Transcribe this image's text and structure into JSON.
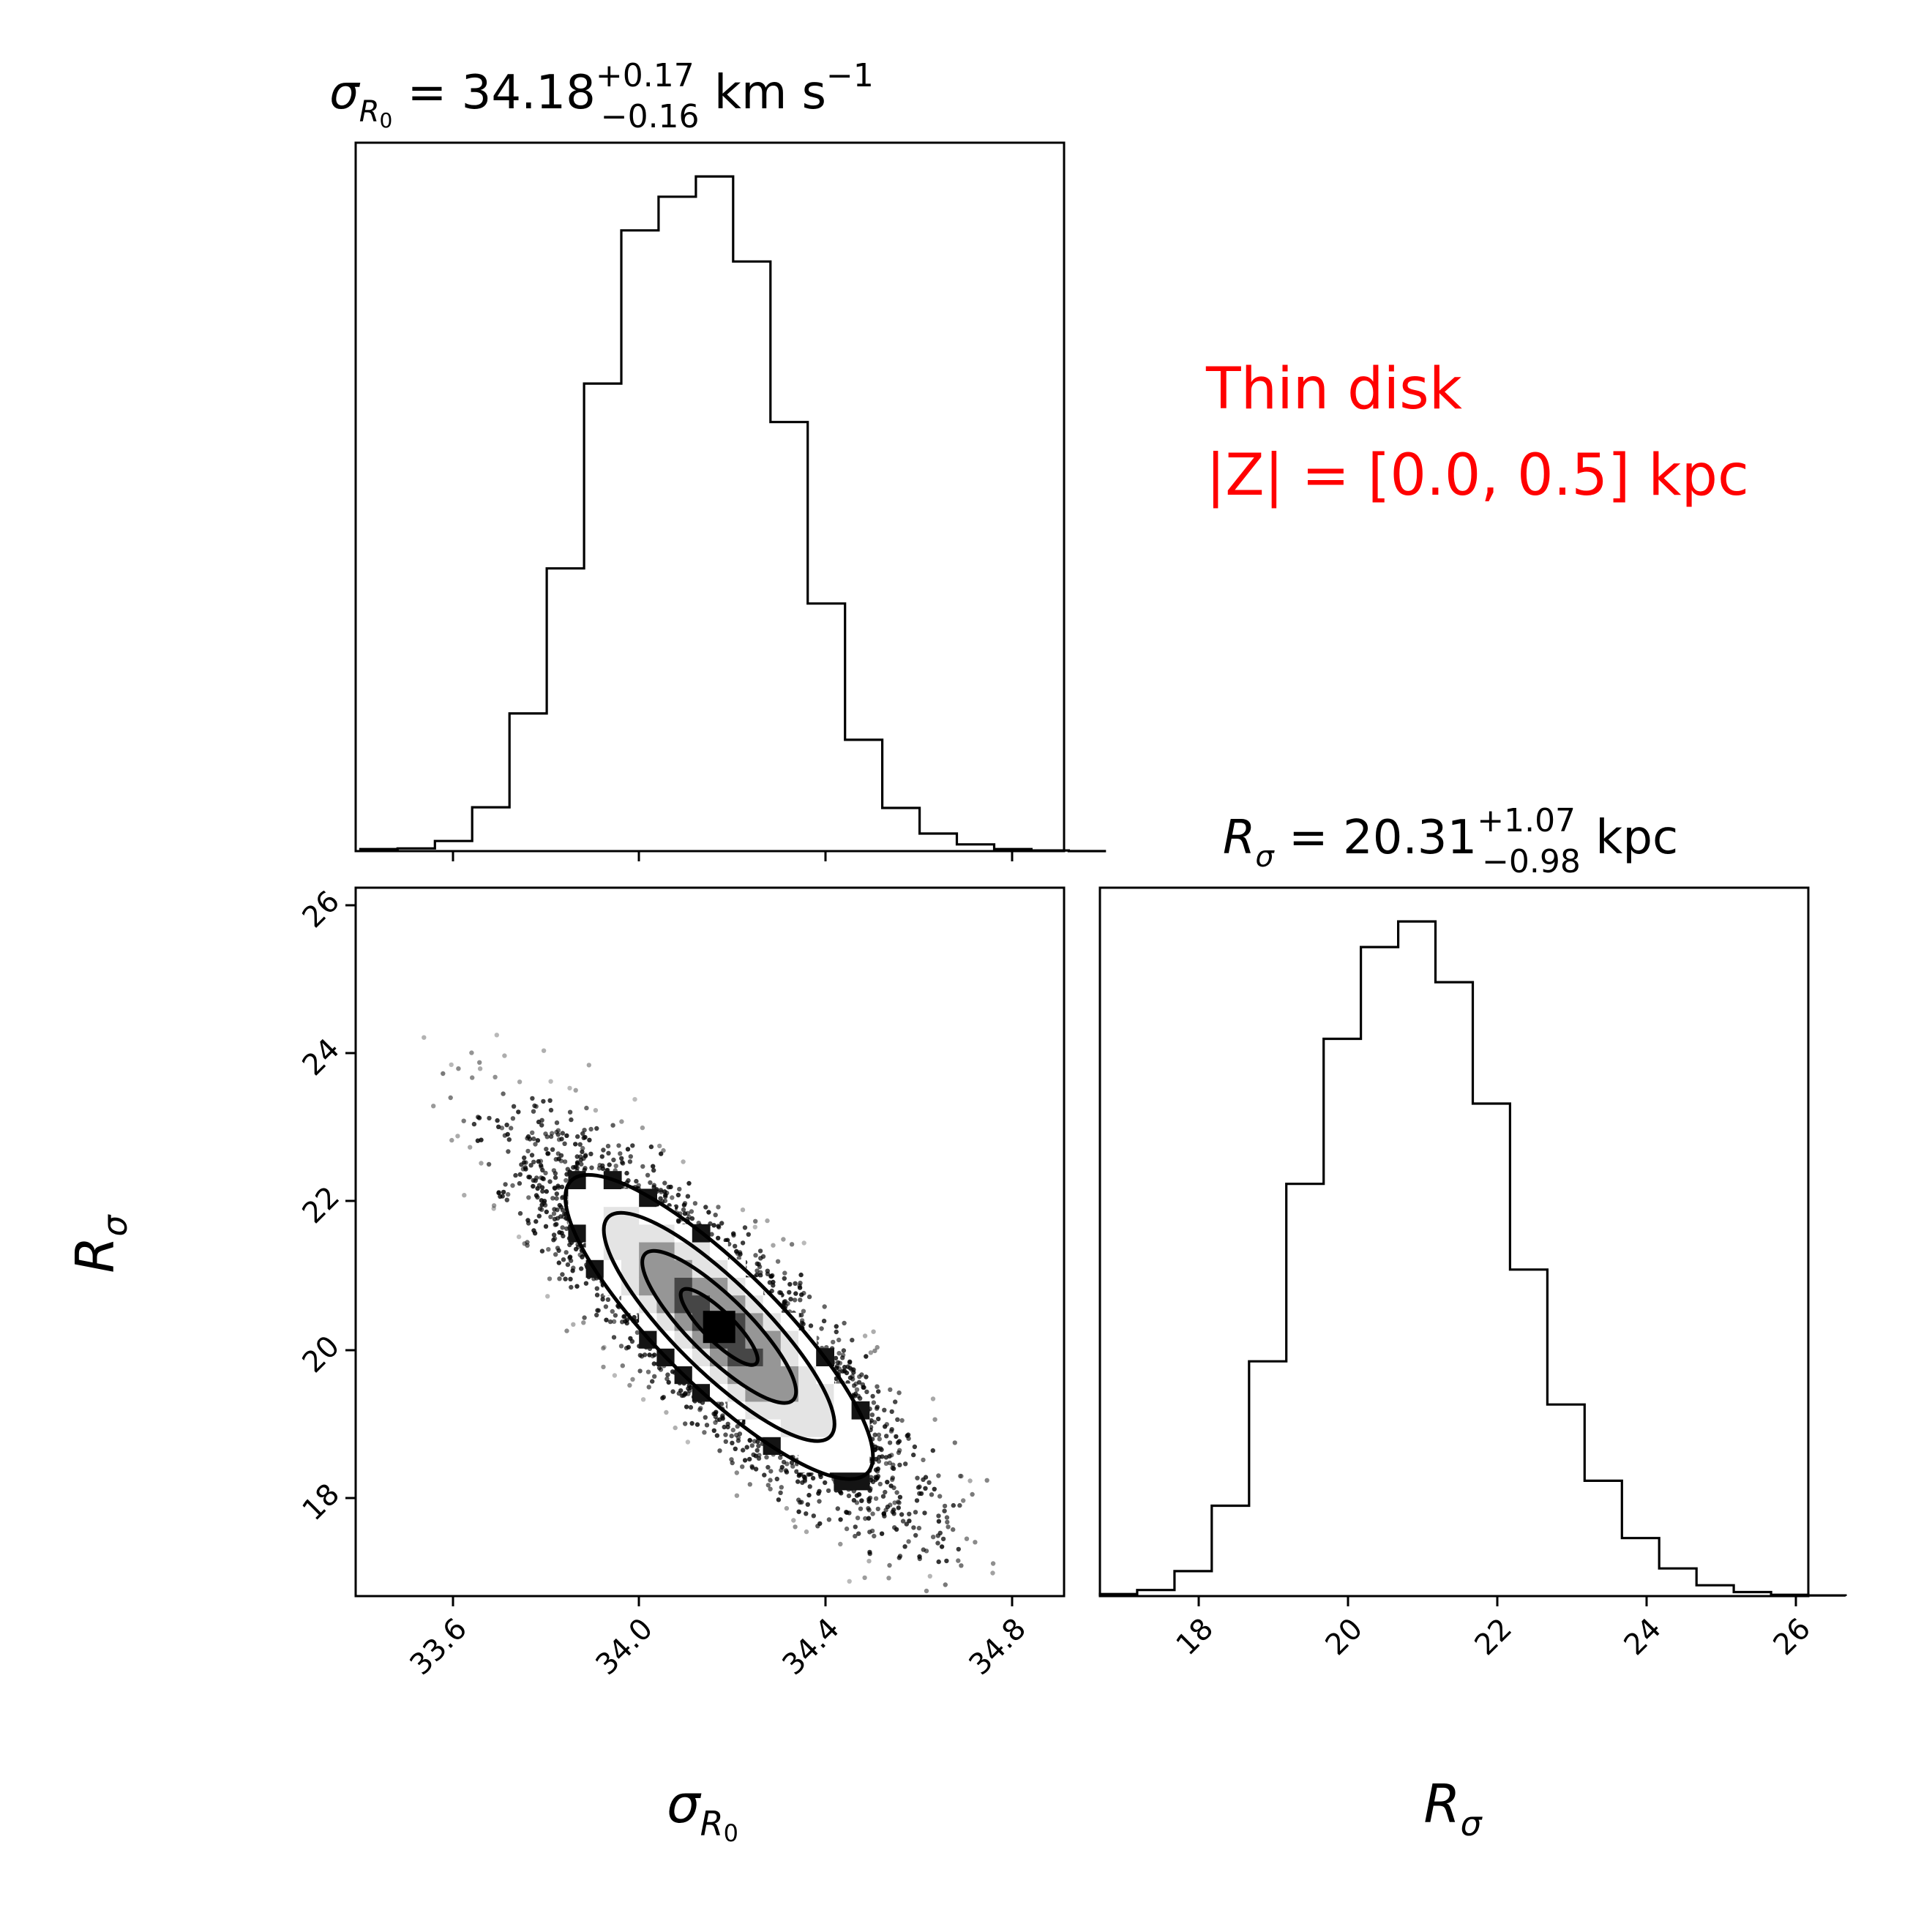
{
  "chart_data": [
    {
      "type": "histogram",
      "panel": "top-left",
      "title": {
        "symbol": "σ",
        "sub": "R",
        "subsub": "0",
        "eq": " = 34.18",
        "sup": "+0.17",
        "low": "−0.16",
        "unit": " km s",
        "unit_exp": "−1"
      },
      "xlim": [
        33.4,
        34.92
      ],
      "bins": {
        "start": 33.41,
        "width": 0.08
      },
      "counts": [
        0.003,
        0.004,
        0.015,
        0.065,
        0.204,
        0.419,
        0.693,
        0.92,
        0.97,
        1.0,
        0.874,
        0.636,
        0.367,
        0.165,
        0.064,
        0.026,
        0.01,
        0.003,
        0.001,
        0.0
      ],
      "ylim": [
        0,
        1.05
      ]
    },
    {
      "type": "histogram",
      "panel": "bottom-right",
      "title": {
        "symbol": "R",
        "sub": "σ",
        "eq": " = 20.31",
        "sup": "+1.07",
        "low": "−0.98",
        "unit": " kpc"
      },
      "xlim": [
        16.7,
        26.2
      ],
      "xticks": [
        "18",
        "20",
        "22",
        "24",
        "26"
      ],
      "xlabel": {
        "symbol": "R",
        "sub": "σ"
      },
      "bins": {
        "start": 16.7,
        "width": 0.5
      },
      "counts": [
        0.003,
        0.009,
        0.037,
        0.134,
        0.348,
        0.611,
        0.826,
        0.962,
        1.0,
        0.91,
        0.73,
        0.484,
        0.284,
        0.171,
        0.086,
        0.041,
        0.016,
        0.006,
        0.002,
        0.001
      ],
      "ylim": [
        0,
        1.05
      ]
    },
    {
      "type": "scatter",
      "panel": "bottom-left",
      "xlim": [
        33.4,
        34.92
      ],
      "ylim": [
        16.7,
        26.2
      ],
      "xticks": [
        "33.6",
        "34.0",
        "34.4",
        "34.8"
      ],
      "yticks": [
        "18",
        "20",
        "22",
        "24",
        "26"
      ],
      "xlabel": {
        "symbol": "σ",
        "sub": "R",
        "subsub": "0"
      },
      "ylabel": {
        "symbol": "R",
        "sub": "σ"
      },
      "center": [
        34.18,
        20.31
      ],
      "sigma": [
        0.165,
        1.02
      ],
      "correlation": -0.85,
      "contour_levels_sigma": [
        0.5,
        1.0,
        1.5,
        2.0
      ],
      "density_image": "2d-histogram-grayscale"
    }
  ],
  "annotation": {
    "line1": "Thin disk",
    "line2": "|Z| = [0.0, 0.5] kpc",
    "color": "#ff0000"
  }
}
